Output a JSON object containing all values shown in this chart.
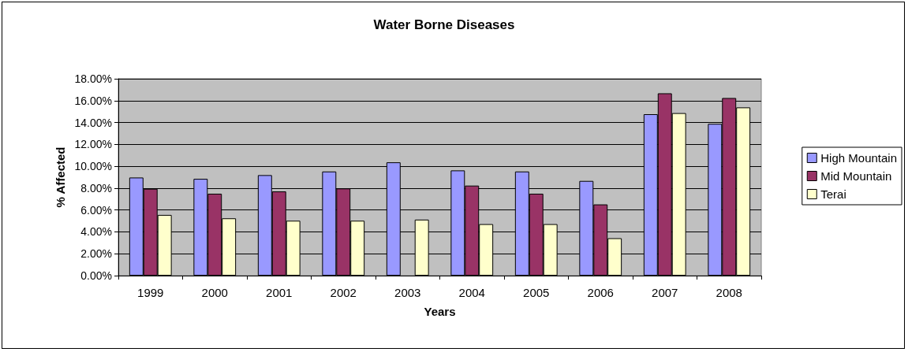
{
  "chart_data": {
    "type": "bar",
    "title": "Water Borne Diseases",
    "xlabel": "Years",
    "ylabel": "% Affected",
    "categories": [
      "1999",
      "2000",
      "2001",
      "2002",
      "2003",
      "2004",
      "2005",
      "2006",
      "2007",
      "2008"
    ],
    "series": [
      {
        "name": "High Mountain",
        "color": "#9999ff",
        "values": [
          8.97,
          8.85,
          9.19,
          9.52,
          10.36,
          9.62,
          9.52,
          8.66,
          14.76,
          13.88
        ]
      },
      {
        "name": "Mid Mountain",
        "color": "#993366",
        "values": [
          7.94,
          7.49,
          7.7,
          7.97,
          null,
          8.23,
          7.49,
          6.51,
          16.67,
          16.24
        ]
      },
      {
        "name": "Terai",
        "color": "#ffffcc",
        "values": [
          5.55,
          5.24,
          5.02,
          5.02,
          5.12,
          4.71,
          4.71,
          3.42,
          14.86,
          15.38
        ]
      }
    ],
    "ylim": [
      0,
      18
    ],
    "yticks": [
      {
        "value": 0,
        "label": "0.00%"
      },
      {
        "value": 2,
        "label": "2.00%"
      },
      {
        "value": 4,
        "label": "4.00%"
      },
      {
        "value": 6,
        "label": "6.00%"
      },
      {
        "value": 8,
        "label": "8.00%"
      },
      {
        "value": 10,
        "label": "10.00%"
      },
      {
        "value": 12,
        "label": "12.00%"
      },
      {
        "value": 14,
        "label": "14.00%"
      },
      {
        "value": 16,
        "label": "16.00%"
      },
      {
        "value": 18,
        "label": "18.00%"
      }
    ],
    "grid": "y",
    "legend": "right"
  }
}
